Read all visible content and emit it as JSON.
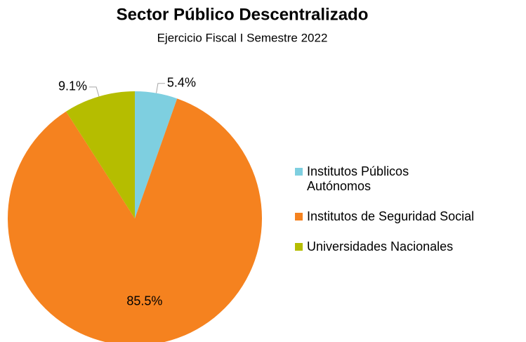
{
  "chart_data": {
    "type": "pie",
    "title": "Sector Público Descentralizado",
    "subtitle": "Ejercicio Fiscal I Semestre 2022",
    "categories": [
      "Institutos Públicos Autónomos",
      "Institutos de Seguridad Social",
      "Universidades Nacionales"
    ],
    "values": [
      5.4,
      85.5,
      9.1
    ],
    "value_labels": [
      "5.4%",
      "85.5%",
      "9.1%"
    ],
    "colors": [
      "#7ecfe0",
      "#f5821f",
      "#b5bd00"
    ]
  }
}
